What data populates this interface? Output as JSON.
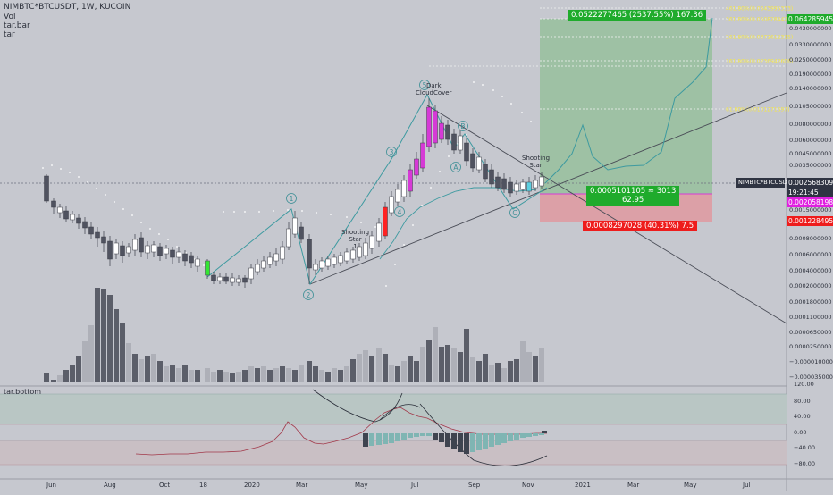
{
  "header": {
    "symbol_line": "NIMBTC*BTCUSDT, 1W, KUCOIN",
    "study_vol": "Vol",
    "study_tarbar": "tar.bar",
    "study_tar": "tar"
  },
  "pane2": {
    "label": "tar.bottom"
  },
  "price_axis": {
    "labels": [
      "0.0642859451",
      "0.0430000000",
      "0.0330000000",
      "0.0250000000",
      "0.0190000000",
      "0.0140000000",
      "0.0105000000",
      "0.0080000000",
      "0.0060000000",
      "0.0045000000",
      "0.0035000000",
      "0.0025683091",
      "0.0020581986",
      "0.0015000000",
      "0.0012284958",
      "0.0008000000",
      "0.0006000000",
      "0.0004000000",
      "0.0002000000",
      "0.0001800000",
      "0.0001100000",
      "0.0000650000",
      "0.0000250000",
      "−0.0000100000",
      "−0.0000350000"
    ],
    "current_symbol": "NIMBTC*BTCUSDT",
    "current_price": "0.0025683091",
    "countdown": "19:21:45",
    "target_price": "0.0020581986",
    "stop_price": "0.0012284958"
  },
  "osc_axis": {
    "labels": [
      "120.00",
      "80.00",
      "40.00",
      "0.00",
      "−40.00",
      "−80.00"
    ]
  },
  "time_axis": {
    "labels": [
      "Jun",
      "Aug",
      "Oct",
      "18",
      "2020",
      "Mar",
      "May",
      "Jul",
      "Sep",
      "Nov",
      "2021",
      "Mar",
      "May",
      "Jul"
    ]
  },
  "fib_levels": [
    "461.80%(0.0643995333)",
    "361.80%(0.0508284424)",
    "261.80%(0.0372612315)",
    "161.80%(0.0236942606)",
    "61.80%(0.0101271697)"
  ],
  "position": {
    "profit_label": "0.0522277465 (2537.55%) 167.36",
    "entry_label_1": "0.0005101105 ≈ 3013",
    "entry_label_2": "62.95",
    "loss_label": "0.0008297028 (40.31%) 7.5"
  },
  "annotations": {
    "shooting_star_1": "Shooting\nStar\n1",
    "dark_cloud": "Dark\nCloudCover",
    "shooting_star_2": "Shooting\nStar",
    "wave_1": "1",
    "wave_2": "2",
    "wave_3": "3",
    "wave_4": "4",
    "wave_5": "5",
    "wave_a": "A",
    "wave_b": "B",
    "wave_c": "C"
  },
  "colors": {
    "background": "#c6c8cf",
    "candle_up": "#ffffff",
    "candle_down": "#505360",
    "green_candle": "#33e633",
    "magenta_candle": "#d63ad6",
    "red_candle": "#ff2222",
    "cyan_candle": "#5ccfe0",
    "profit_zone": "#7dbb82",
    "loss_zone": "#e58f95",
    "label_green": "#1fab2c",
    "label_red": "#ee1c1c",
    "magenta_tag": "#e020e0",
    "dark_tag": "#2f3442"
  }
}
